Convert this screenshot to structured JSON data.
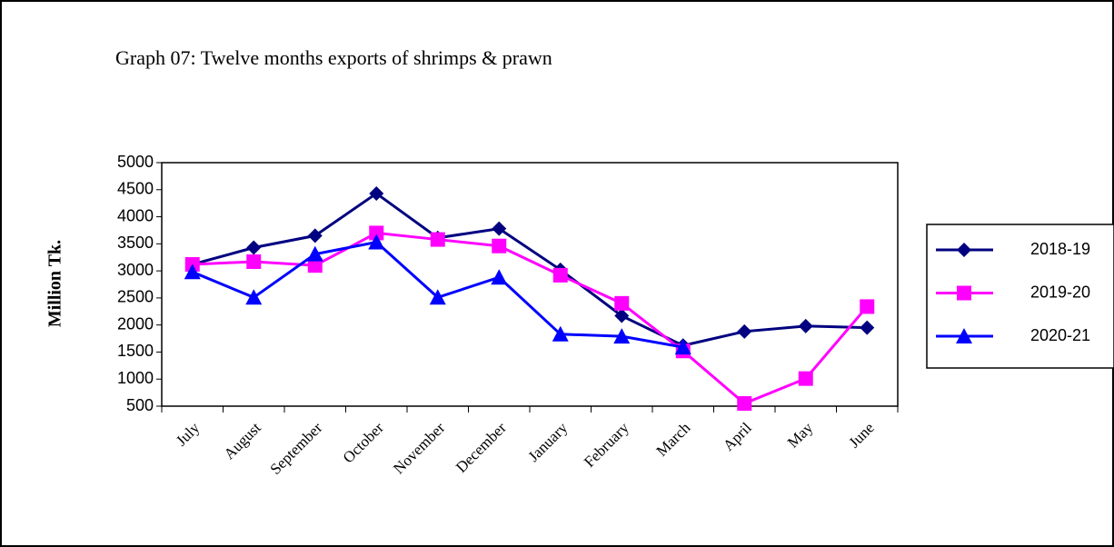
{
  "chart_data": {
    "type": "line",
    "title": "Graph 07: Twelve months exports of shrimps & prawn",
    "y_label": "Million Tk.",
    "categories": [
      "July",
      "August",
      "September",
      "October",
      "November",
      "December",
      "January",
      "February",
      "March",
      "April",
      "May",
      "June"
    ],
    "series": [
      {
        "name": "2018-19",
        "color": "#000080",
        "marker": "diamond",
        "values": [
          3120,
          3430,
          3650,
          4430,
          3610,
          3780,
          3020,
          2170,
          1620,
          1880,
          1980,
          1950
        ]
      },
      {
        "name": "2019-20",
        "color": "#ff00ff",
        "marker": "square",
        "values": [
          3120,
          3170,
          3100,
          3700,
          3580,
          3460,
          2920,
          2400,
          1520,
          550,
          1010,
          2340
        ]
      },
      {
        "name": "2020-21",
        "color": "#0000ff",
        "marker": "triangle",
        "values": [
          2980,
          2510,
          3310,
          3530,
          2510,
          2880,
          1830,
          1790,
          1590,
          null,
          null,
          null
        ]
      }
    ],
    "ylim": [
      500,
      5000
    ],
    "yticks": [
      500,
      1000,
      1500,
      2000,
      2500,
      3000,
      3500,
      4000,
      4500,
      5000
    ],
    "grid": false,
    "legend": "right"
  }
}
